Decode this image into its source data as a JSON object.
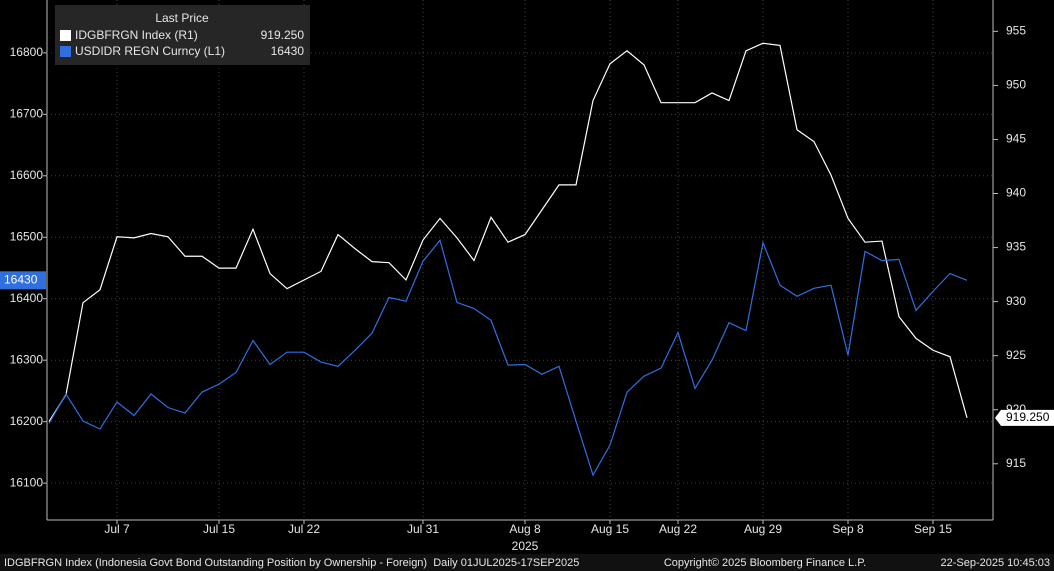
{
  "chart_data": {
    "type": "line",
    "legend_title": "Last Price",
    "categories": [
      null,
      null,
      null,
      null,
      "Jul 7",
      null,
      null,
      null,
      null,
      null,
      "Jul 15",
      null,
      null,
      null,
      null,
      "Jul 22",
      null,
      null,
      null,
      null,
      null,
      null,
      "Jul 31",
      null,
      null,
      null,
      null,
      null,
      "Aug 8",
      null,
      null,
      null,
      null,
      "Aug 15",
      null,
      null,
      null,
      "Aug 22",
      null,
      null,
      null,
      null,
      "Aug 29",
      null,
      null,
      null,
      null,
      "Sep 8",
      null,
      null,
      null,
      null,
      "Sep 15",
      null,
      null
    ],
    "year_label": "2025",
    "series": [
      {
        "name": "IDGBFRGN Index (R1)",
        "color": "#ffffff",
        "axis": "y2",
        "last_value_label": "919.250",
        "values": [
          918.9,
          921.4,
          929.9,
          931.1,
          936.0,
          935.9,
          936.3,
          936.0,
          934.2,
          934.2,
          933.1,
          933.1,
          936.7,
          932.6,
          931.2,
          932.0,
          932.8,
          936.2,
          934.9,
          933.7,
          933.6,
          932.0,
          935.7,
          937.7,
          935.9,
          933.8,
          937.8,
          935.5,
          936.2,
          938.5,
          940.8,
          940.8,
          948.6,
          952.0,
          953.2,
          951.9,
          948.4,
          948.4,
          948.4,
          949.3,
          948.6,
          953.2,
          953.9,
          953.7,
          945.9,
          944.8,
          941.7,
          937.7,
          935.5,
          935.6,
          928.6,
          926.6,
          925.5,
          924.9,
          919.25
        ]
      },
      {
        "name": "USDIDR REGN Curncy (L1)",
        "color": "#2f6fe0",
        "values": [
          16197,
          16245,
          16201,
          16188,
          16232,
          16210,
          16245,
          16223,
          16214,
          16248,
          16261,
          16280,
          16332,
          16293,
          16313,
          16313,
          16297,
          16290,
          16316,
          16344,
          16402,
          16396,
          16461,
          16495,
          16394,
          16384,
          16365,
          16292,
          16293,
          16277,
          16290,
          16201,
          16113,
          16162,
          16248,
          16274,
          16287,
          16345,
          16254,
          16300,
          16361,
          16348,
          16491,
          16422,
          16404,
          16417,
          16422,
          16308,
          16477,
          16462,
          16464,
          16381,
          16412,
          16441,
          16430
        ]
      }
    ],
    "ylim": [
      16040,
      16886
    ],
    "yticks": [
      16100,
      16200,
      16300,
      16400,
      16500,
      16600,
      16700,
      16800
    ],
    "y2lim": [
      909.8,
      957.9
    ],
    "y2ticks": [
      915,
      920,
      925,
      930,
      935,
      940,
      945,
      950,
      955
    ],
    "grid": true,
    "footer_left": "IDGBFRGN Index (Indonesia Govt Bond Outstanding Position by Ownership - Foreign)  Daily 01JUL2025-17SEP2025",
    "footer_center": "Copyright© 2025 Bloomberg Finance L.P.",
    "footer_right": "22-Sep-2025 10:45:03"
  }
}
